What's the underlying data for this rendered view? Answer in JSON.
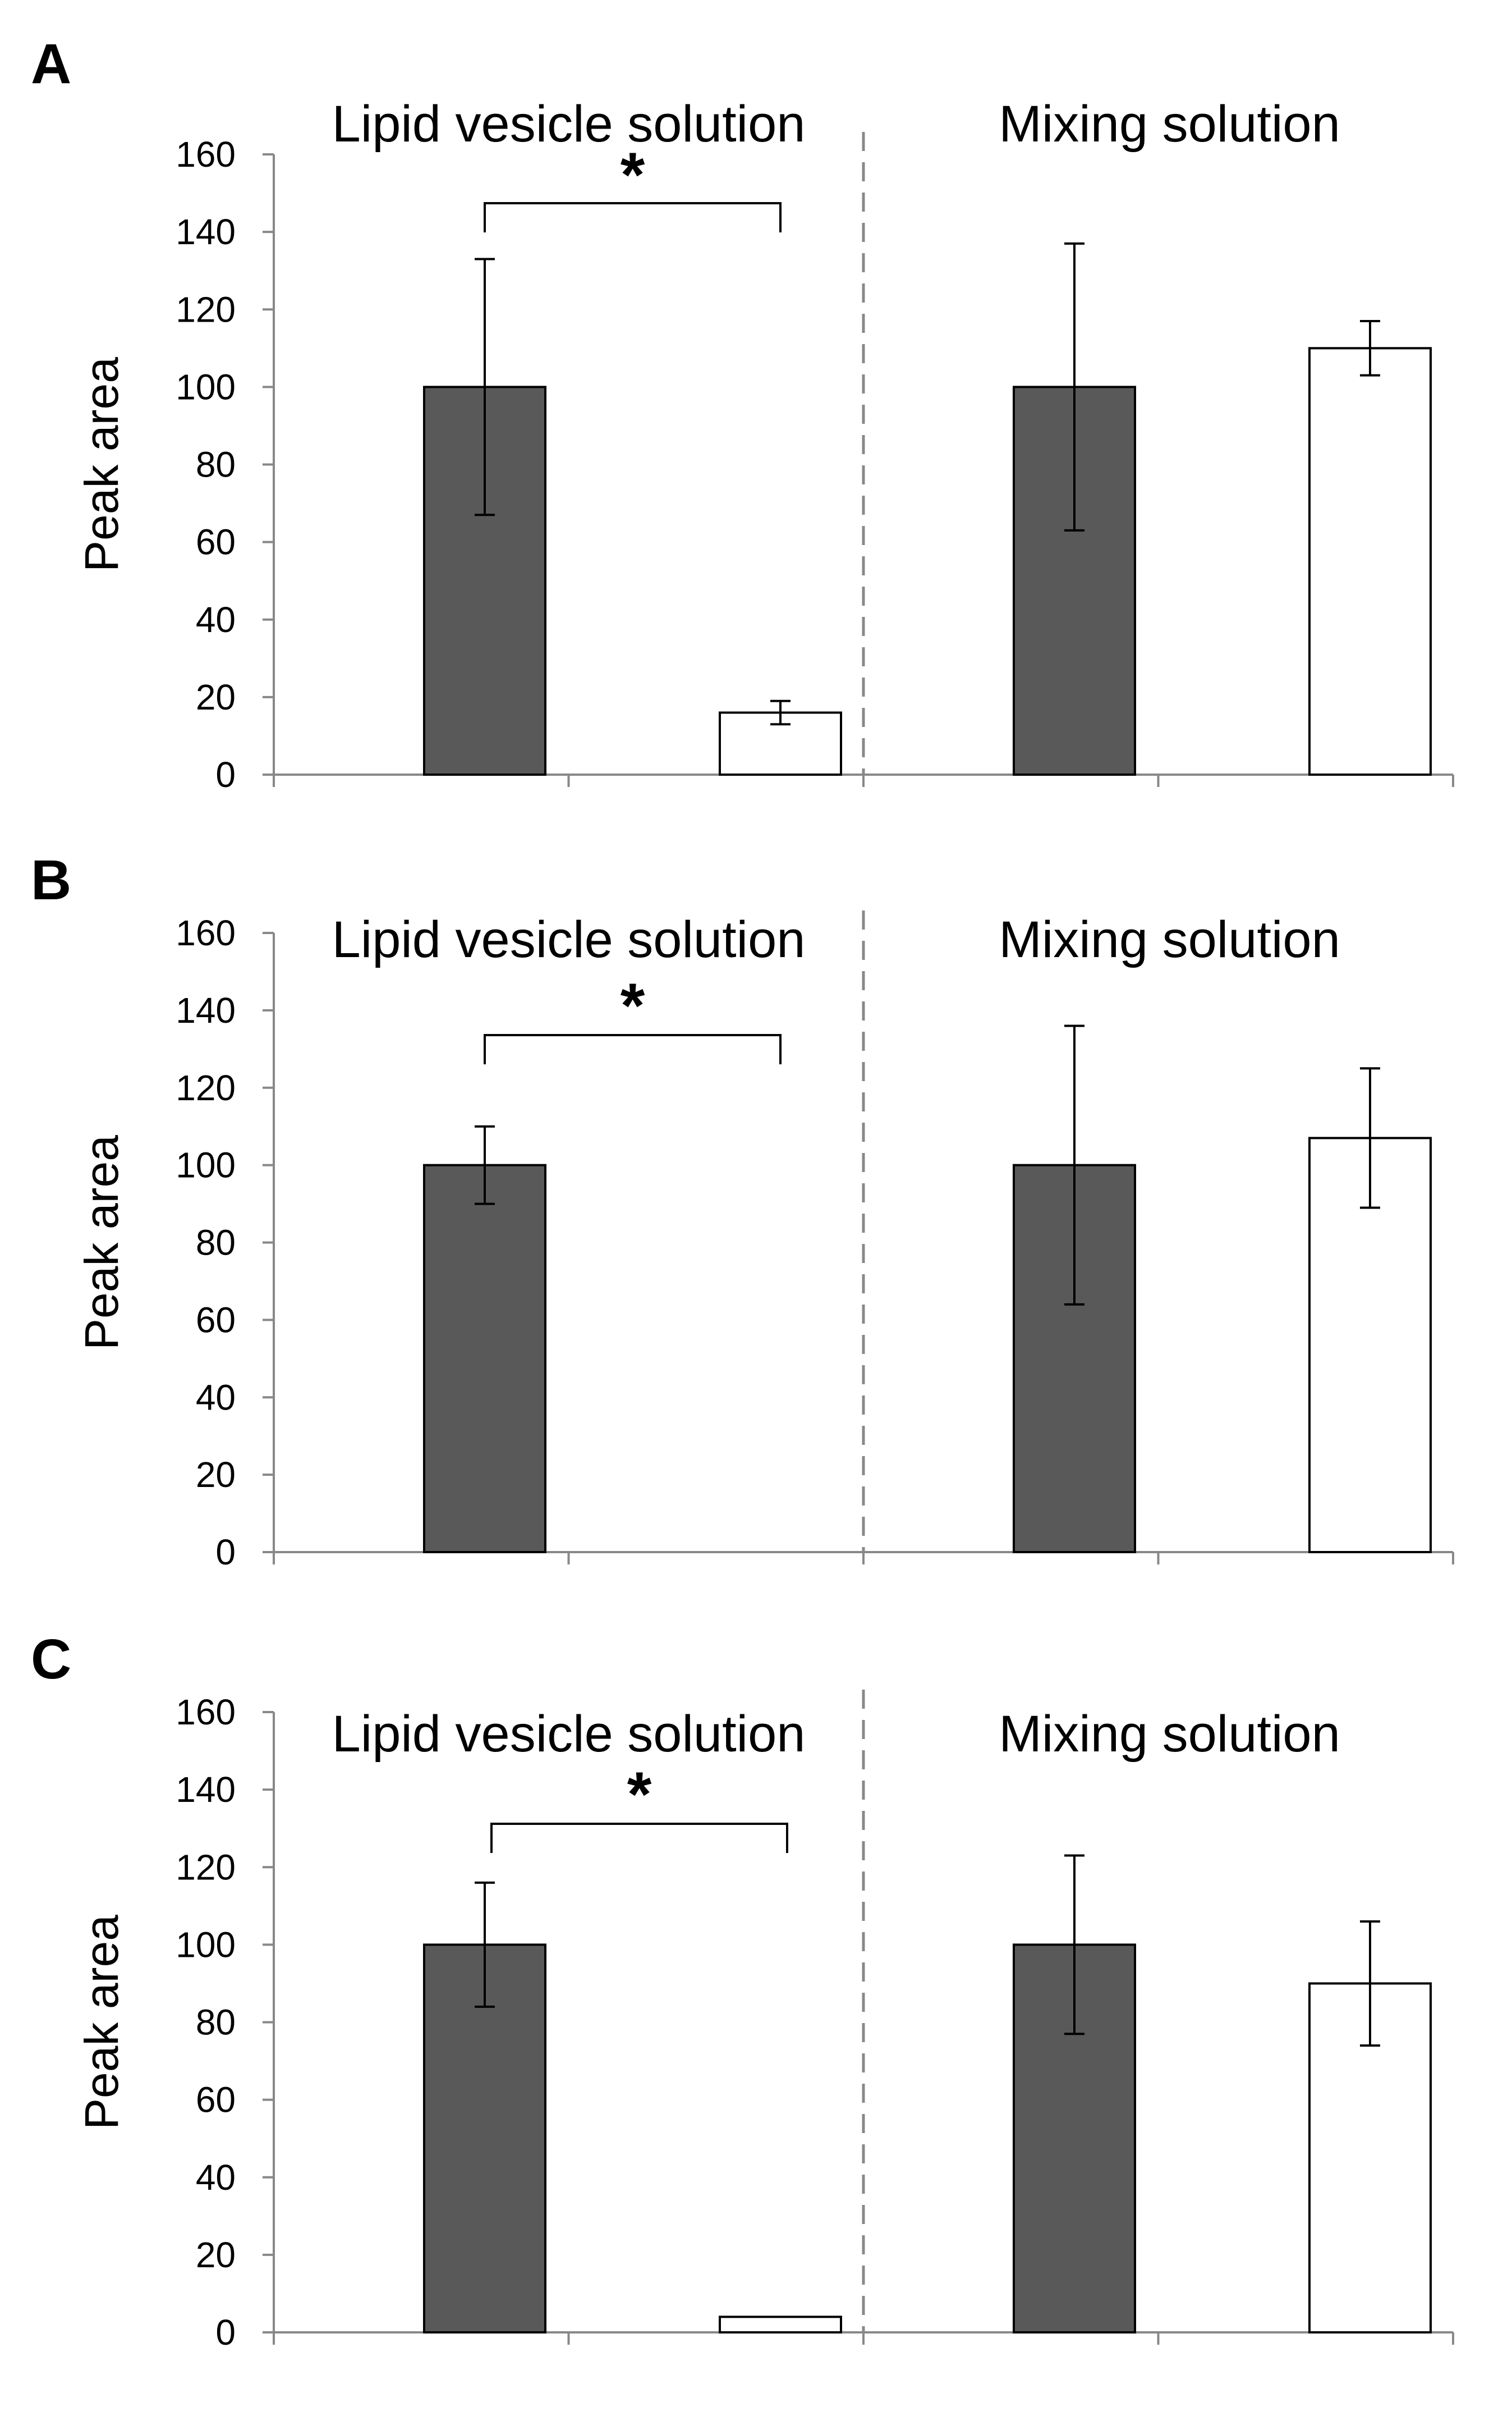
{
  "chart_data": [
    {
      "type": "bar",
      "panel": "A",
      "ylabel": "Peak area",
      "ylim": [
        0,
        160
      ],
      "yticks": [
        0,
        20,
        40,
        60,
        80,
        100,
        120,
        140,
        160
      ],
      "groups": [
        "Lipid vesicle solution",
        "Mixing solution"
      ],
      "series": [
        {
          "name": "dark",
          "color": "#595959",
          "values": [
            100,
            100
          ],
          "errors": [
            33,
            37
          ]
        },
        {
          "name": "white",
          "color": "#ffffff",
          "values": [
            16,
            110
          ],
          "errors": [
            3,
            7
          ]
        }
      ],
      "significance": [
        {
          "group": 0,
          "label": "*"
        }
      ]
    },
    {
      "type": "bar",
      "panel": "B",
      "ylabel": "Peak area",
      "ylim": [
        0,
        160
      ],
      "yticks": [
        0,
        20,
        40,
        60,
        80,
        100,
        120,
        140,
        160
      ],
      "groups": [
        "Lipid vesicle solution",
        "Mixing solution"
      ],
      "series": [
        {
          "name": "dark",
          "color": "#595959",
          "values": [
            100,
            100
          ],
          "errors": [
            10,
            36
          ]
        },
        {
          "name": "white",
          "color": "#ffffff",
          "values": [
            0,
            107
          ],
          "errors": [
            0,
            18
          ]
        }
      ],
      "significance": [
        {
          "group": 0,
          "label": "*"
        }
      ]
    },
    {
      "type": "bar",
      "panel": "C",
      "ylabel": "Peak area",
      "ylim": [
        0,
        160
      ],
      "yticks": [
        0,
        20,
        40,
        60,
        80,
        100,
        120,
        140,
        160
      ],
      "groups": [
        "Lipid vesicle solution",
        "Mixing solution"
      ],
      "series": [
        {
          "name": "dark",
          "color": "#595959",
          "values": [
            100,
            100
          ],
          "errors": [
            16,
            23
          ]
        },
        {
          "name": "white",
          "color": "#ffffff",
          "values": [
            4,
            90
          ],
          "errors": [
            0,
            16
          ]
        }
      ],
      "significance": [
        {
          "group": 0,
          "label": "*"
        }
      ]
    }
  ]
}
